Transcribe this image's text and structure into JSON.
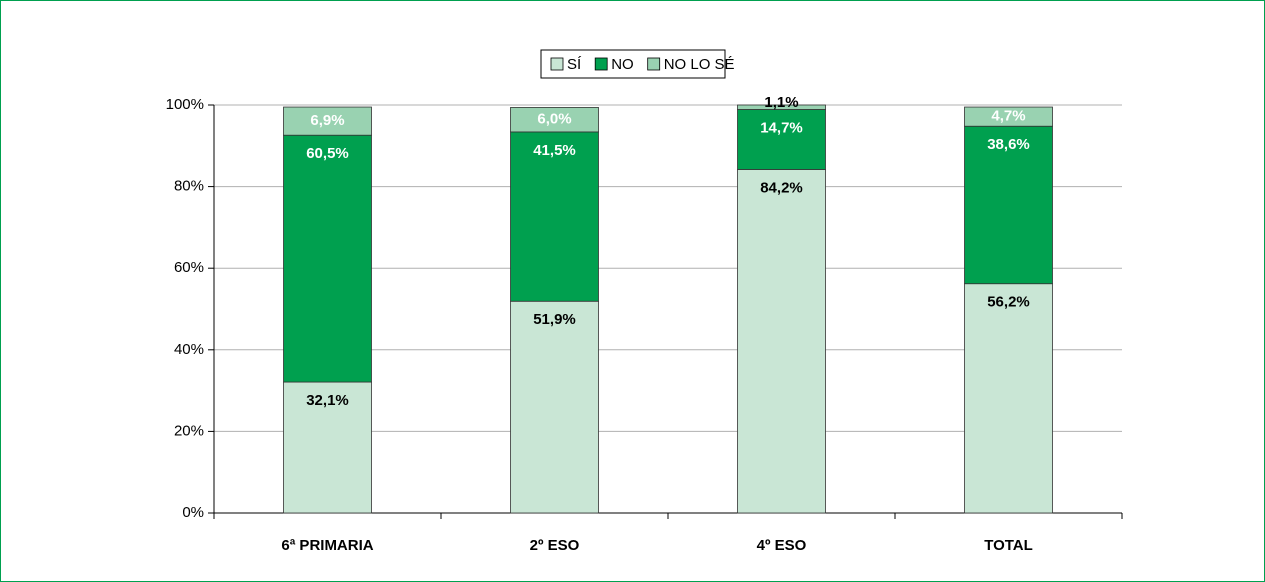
{
  "chart_data": {
    "type": "stacked_bar",
    "categories": [
      "6ª PRIMARIA",
      "2º ESO",
      "4º ESO",
      "TOTAL"
    ],
    "series": [
      {
        "name": "SÍ",
        "color": "#c9e6d5",
        "label_color": "#000000",
        "values": [
          32.1,
          51.9,
          84.2,
          56.2
        ],
        "value_labels": [
          "32,1%",
          "51,9%",
          "84,2%",
          "56,2%"
        ]
      },
      {
        "name": "NO",
        "color": "#00a04f",
        "label_color": "#ffffff",
        "values": [
          60.5,
          41.5,
          14.7,
          38.6
        ],
        "value_labels": [
          "60,5%",
          "41,5%",
          "14,7%",
          "38,6%"
        ]
      },
      {
        "name": "NO LO SÉ",
        "color": "#99d2b1",
        "label_color": "#ffffff",
        "values": [
          6.9,
          6.0,
          1.1,
          4.7
        ],
        "value_labels": [
          "6,9%",
          "6,0%",
          "1,1%",
          "4,7%"
        ]
      }
    ],
    "ylim": [
      0,
      100
    ],
    "yticks": [
      {
        "value": 0,
        "label": "0%"
      },
      {
        "value": 20,
        "label": "20%"
      },
      {
        "value": 40,
        "label": "40%"
      },
      {
        "value": 60,
        "label": "60%"
      },
      {
        "value": 80,
        "label": "80%"
      },
      {
        "value": 100,
        "label": "100%"
      }
    ],
    "grid": true,
    "legend": "top"
  }
}
